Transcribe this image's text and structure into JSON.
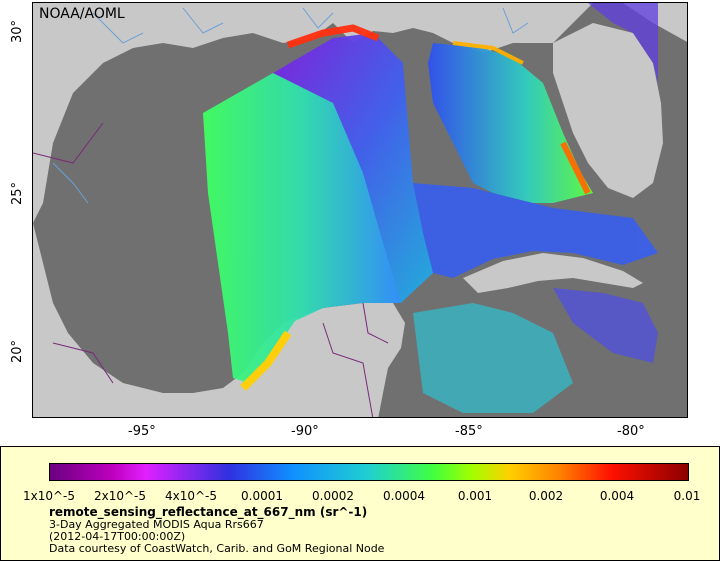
{
  "credit": "NOAA/AOML",
  "x_ticks": [
    "-95°",
    "-90°",
    "-85°",
    "-80°"
  ],
  "y_ticks": [
    "30°",
    "25°",
    "20°"
  ],
  "colors": {
    "ocean_nodata": "#707070",
    "land": "#c8c8c8",
    "border": "#7a2a7a",
    "river": "#6aa0d8",
    "legend_bg": "#ffffcc"
  },
  "colorbar": {
    "tick_labels": [
      "1x10^-5",
      "2x10^-5",
      "4x10^-5",
      "0.0001",
      "0.0002",
      "0.0004",
      "0.001",
      "0.002",
      "0.004",
      "0.01"
    ]
  },
  "legend": {
    "title": "remote_sensing_reflectance_at_667_nm (sr^-1)",
    "line1": "3-Day Aggregated MODIS Aqua Rrs667",
    "line2": "(2012-04-17T00:00:00Z)",
    "line3": "Data courtesy of CoastWatch, Carib. and GoM Regional Node"
  }
}
